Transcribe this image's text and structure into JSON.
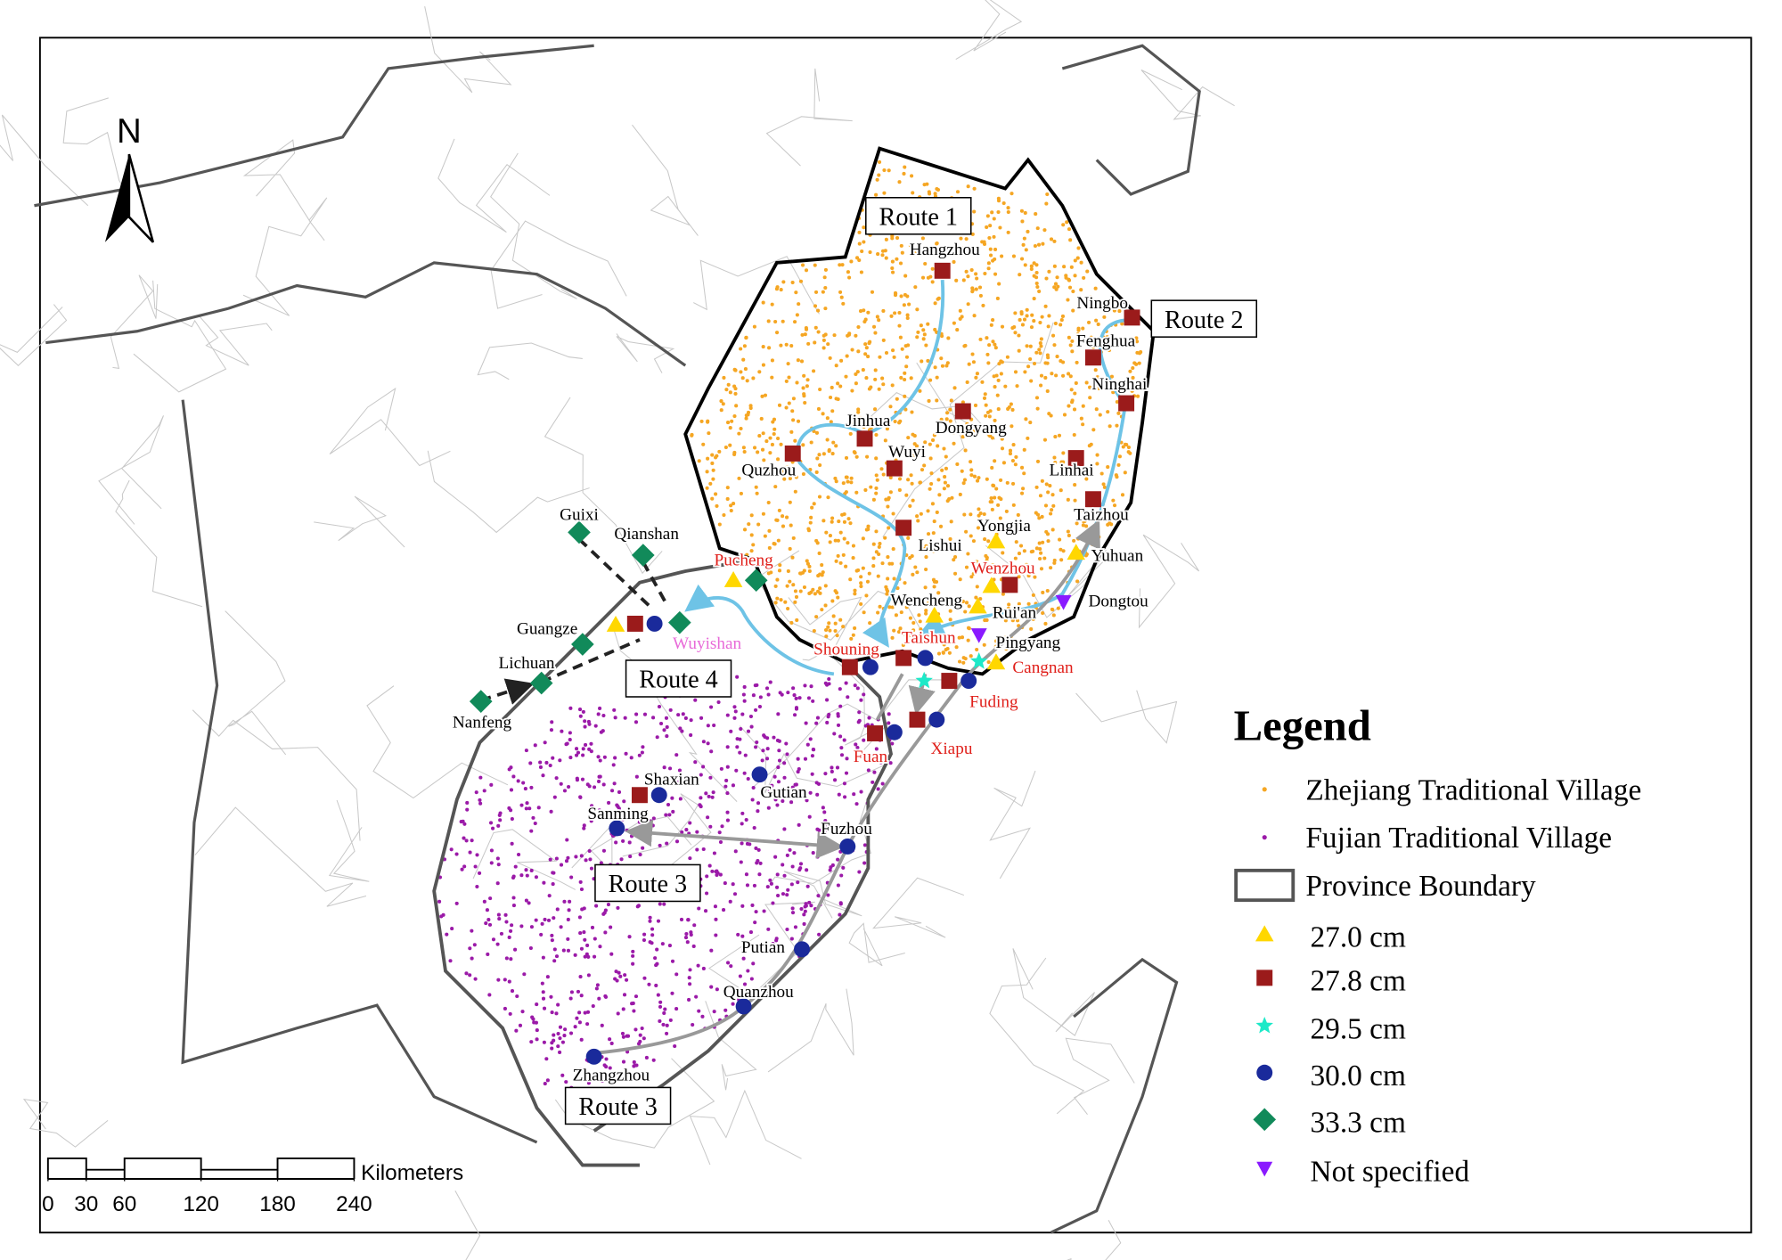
{
  "north": "N",
  "routes": [
    "Route 1",
    "Route 2",
    "Route 4",
    "Route 3",
    "Route 3"
  ],
  "places": [
    "Hangzhou",
    "Ningbo",
    "Fenghua",
    "Ninghai",
    "Jinhua",
    "Dongyang",
    "Quzhou",
    "Wuyi",
    "Linhai",
    "Yongjia",
    "Taizhou",
    "Lishui",
    "Pucheng",
    "Yuhuan",
    "Wenzhou",
    "Guixi",
    "Qianshan",
    "Wencheng",
    "Rui'an",
    "Dongtou",
    "Guangze",
    "Wuyishan",
    "Pingyang",
    "Taishun",
    "Shouning",
    "Cangnan",
    "Lichuan",
    "Fuding",
    "Nanfeng",
    "Fuan",
    "Xiapu",
    "Shaxian",
    "Gutian",
    "Sanming",
    "Fuzhou",
    "Putian",
    "Quanzhou",
    "Zhangzhou"
  ],
  "legend": {
    "title": "Legend",
    "items": [
      "Zhejiang Traditional Village",
      "Fujian Traditional Village",
      "Province Boundary",
      "27.0 cm",
      "27.8 cm",
      "29.5 cm",
      "30.0 cm",
      "33.3 cm",
      "Not specified"
    ]
  },
  "scale": {
    "unit": "Kilometers",
    "ticks": [
      0,
      30,
      60,
      120,
      180,
      240
    ]
  }
}
